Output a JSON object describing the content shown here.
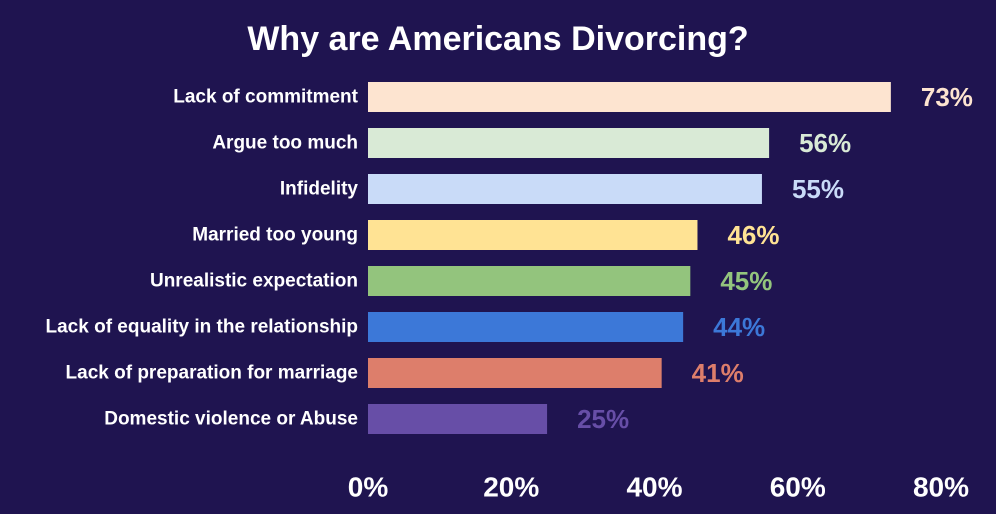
{
  "chart_data": {
    "type": "bar",
    "orientation": "horizontal",
    "title": "Why are Americans Divorcing?",
    "categories": [
      "Lack of commitment",
      "Argue too much",
      "Infidelity",
      "Married too young",
      "Unrealistic expectation",
      "Lack of equality in the relationship",
      "Lack of preparation for marriage",
      "Domestic violence or Abuse"
    ],
    "values": [
      73,
      56,
      55,
      46,
      45,
      44,
      41,
      25
    ],
    "value_labels": [
      "73%",
      "56%",
      "55%",
      "46%",
      "45%",
      "44%",
      "41%",
      "25%"
    ],
    "colors": [
      "#fde4d0",
      "#d9ead6",
      "#c9dbf8",
      "#ffe394",
      "#93c47d",
      "#3c78d8",
      "#dd7e6b",
      "#674ea7"
    ],
    "xlim": [
      0,
      80
    ],
    "xticks": [
      0,
      20,
      40,
      60,
      80
    ],
    "xtick_labels": [
      "0%",
      "20%",
      "40%",
      "60%",
      "80%"
    ],
    "xlabel": "",
    "ylabel": "",
    "grid": false,
    "legend": "none",
    "background": "#1f1450",
    "text_color": "#ffffff"
  }
}
